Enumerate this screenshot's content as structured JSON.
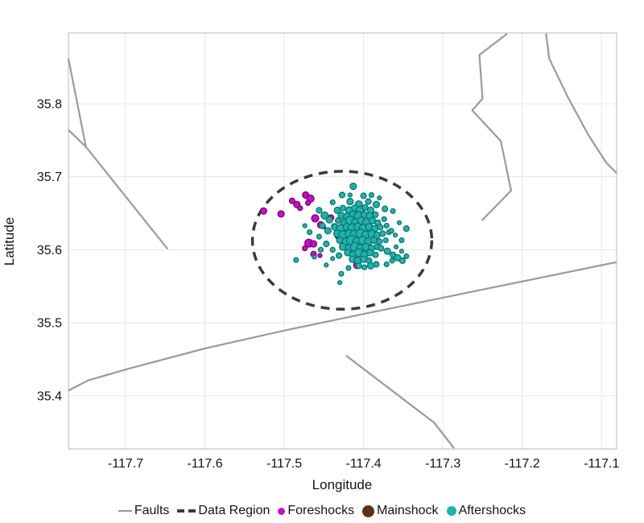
{
  "legend": {
    "items": [
      {
        "id": "faults",
        "label": "Faults",
        "marker": "line",
        "color": "#9a9a9a"
      },
      {
        "id": "data-region",
        "label": "Data Region",
        "marker": "dashes",
        "color": "#3a3a3a"
      },
      {
        "id": "foreshocks",
        "label": "Foreshocks",
        "marker": "dot",
        "color": "#c113c1"
      },
      {
        "id": "mainshock",
        "label": "Mainshock",
        "marker": "dot",
        "color": "#5e3210"
      },
      {
        "id": "aftershocks",
        "label": "Aftershocks",
        "marker": "dot",
        "color": "#1fb3ac"
      }
    ]
  },
  "chart_data": {
    "type": "scatter",
    "title": "",
    "xlabel": "Longitude",
    "ylabel": "Latitude",
    "xlim": [
      -117.772,
      -117.081
    ],
    "ylim": [
      35.327,
      35.897
    ],
    "grid": true,
    "legend_position": "bottom",
    "xticks": {
      "values": [
        -117.7,
        -117.6,
        -117.5,
        -117.4,
        -117.3,
        -117.2,
        -117.1
      ],
      "labels": [
        "-117.7",
        "-117.6",
        "-117.5",
        "-117.4",
        "-117.3",
        "-117.2",
        "-117.1"
      ]
    },
    "yticks": {
      "values": [
        35.4,
        35.5,
        35.6,
        35.7,
        35.8
      ],
      "labels": [
        "35.4",
        "35.5",
        "35.6",
        "35.7",
        "35.8"
      ]
    },
    "style": {
      "grid_color": "#e8e8e8",
      "frame_color": "#b8b8b8",
      "text_color": "#141414",
      "tick_font_size": 16,
      "label_font_size": 17
    },
    "faults": {
      "color": "#9a9a9a",
      "width": 2.2,
      "lines": [
        [
          [
            -117.772,
            35.862
          ],
          [
            -117.75,
            35.741
          ]
        ],
        [
          [
            -117.772,
            35.764
          ],
          [
            -117.75,
            35.741
          ],
          [
            -117.647,
            35.601
          ]
        ],
        [
          [
            -117.772,
            35.407
          ],
          [
            -117.747,
            35.421
          ],
          [
            -117.696,
            35.437
          ],
          [
            -117.599,
            35.465
          ],
          [
            -117.497,
            35.49
          ],
          [
            -117.4,
            35.512
          ],
          [
            -117.081,
            35.583
          ]
        ],
        [
          [
            -117.219,
            35.896
          ],
          [
            -117.254,
            35.867
          ],
          [
            -117.25,
            35.807
          ],
          [
            -117.263,
            35.791
          ],
          [
            -117.227,
            35.749
          ],
          [
            -117.214,
            35.681
          ],
          [
            -117.251,
            35.64
          ]
        ],
        [
          [
            -117.17,
            35.896
          ],
          [
            -117.166,
            35.862
          ],
          [
            -117.142,
            35.808
          ],
          [
            -117.117,
            35.758
          ],
          [
            -117.094,
            35.719
          ],
          [
            -117.081,
            35.705
          ]
        ],
        [
          [
            -117.422,
            35.455
          ],
          [
            -117.311,
            35.363
          ],
          [
            -117.286,
            35.328
          ]
        ]
      ]
    },
    "data_region": {
      "center": [
        -117.427,
        35.613
      ],
      "rx": 0.113,
      "ry": 0.0945,
      "color": "#3a3a3a",
      "stroke_width": 3.5,
      "dash": "11 8"
    },
    "series": [
      {
        "name": "Foreshocks",
        "fill": "#c113c1",
        "edge": "#73026f",
        "points": [
          [
            -117.526,
            35.653,
            8
          ],
          [
            -117.504,
            35.649,
            8
          ],
          [
            -117.49,
            35.667,
            7
          ],
          [
            -117.484,
            35.662,
            8
          ],
          [
            -117.48,
            35.657,
            6
          ],
          [
            -117.473,
            35.675,
            8
          ],
          [
            -117.467,
            35.67,
            9
          ],
          [
            -117.47,
            35.664,
            6
          ],
          [
            -117.461,
            35.643,
            9
          ],
          [
            -117.454,
            35.634,
            8
          ],
          [
            -117.441,
            35.644,
            7
          ],
          [
            -117.451,
            35.632,
            6
          ],
          [
            -117.469,
            35.609,
            10
          ],
          [
            -117.463,
            35.608,
            8
          ],
          [
            -117.474,
            35.602,
            6
          ],
          [
            -117.463,
            35.594,
            7
          ],
          [
            -117.455,
            35.592,
            5
          ],
          [
            -117.408,
            35.579,
            9
          ]
        ]
      },
      {
        "name": "Mainshock",
        "fill": "#5e3210",
        "edge": "#331607",
        "points": [
          [
            -117.43,
            35.621,
            13
          ]
        ]
      },
      {
        "name": "Aftershocks",
        "fill": "#1fb3ac",
        "edge": "#0c6f6a",
        "points": [
          [
            -117.427,
            35.675,
            7
          ],
          [
            -117.413,
            35.687,
            8
          ],
          [
            -117.4,
            35.674,
            7
          ],
          [
            -117.439,
            35.665,
            6
          ],
          [
            -117.417,
            35.666,
            8
          ],
          [
            -117.406,
            35.662,
            9
          ],
          [
            -117.394,
            35.666,
            7
          ],
          [
            -117.384,
            35.662,
            8
          ],
          [
            -117.373,
            35.656,
            7
          ],
          [
            -117.363,
            35.653,
            6
          ],
          [
            -117.39,
            35.675,
            6
          ],
          [
            -117.38,
            35.671,
            5
          ],
          [
            -117.456,
            35.654,
            7
          ],
          [
            -117.449,
            35.647,
            9
          ],
          [
            -117.443,
            35.641,
            8
          ],
          [
            -117.452,
            35.633,
            7
          ],
          [
            -117.445,
            35.626,
            8
          ],
          [
            -117.437,
            35.632,
            7
          ],
          [
            -117.456,
            35.618,
            6
          ],
          [
            -117.468,
            35.624,
            6
          ],
          [
            -117.474,
            35.633,
            5
          ],
          [
            -117.485,
            35.586,
            6
          ],
          [
            -117.462,
            35.59,
            5
          ],
          [
            -117.454,
            35.6,
            6
          ],
          [
            -117.447,
            35.608,
            7
          ],
          [
            -117.439,
            35.6,
            6
          ],
          [
            -117.431,
            35.592,
            7
          ],
          [
            -117.439,
            35.588,
            5
          ],
          [
            -117.447,
            35.579,
            5
          ],
          [
            -117.428,
            35.567,
            6
          ],
          [
            -117.419,
            35.575,
            6
          ],
          [
            -117.433,
            35.654,
            8
          ],
          [
            -117.426,
            35.657,
            7
          ],
          [
            -117.418,
            35.654,
            9
          ],
          [
            -117.411,
            35.657,
            8
          ],
          [
            -117.404,
            35.654,
            10
          ],
          [
            -117.398,
            35.658,
            7
          ],
          [
            -117.391,
            35.654,
            8
          ],
          [
            -117.428,
            35.647,
            8
          ],
          [
            -117.42,
            35.645,
            10
          ],
          [
            -117.413,
            35.648,
            9
          ],
          [
            -117.406,
            35.646,
            11
          ],
          [
            -117.399,
            35.648,
            8
          ],
          [
            -117.392,
            35.646,
            9
          ],
          [
            -117.385,
            35.648,
            7
          ],
          [
            -117.432,
            35.64,
            7
          ],
          [
            -117.424,
            35.637,
            9
          ],
          [
            -117.417,
            35.64,
            11
          ],
          [
            -117.41,
            35.637,
            10
          ],
          [
            -117.403,
            35.64,
            9
          ],
          [
            -117.396,
            35.637,
            10
          ],
          [
            -117.389,
            35.64,
            8
          ],
          [
            -117.382,
            35.637,
            7
          ],
          [
            -117.374,
            35.642,
            6
          ],
          [
            -117.436,
            35.631,
            8
          ],
          [
            -117.429,
            35.629,
            10
          ],
          [
            -117.421,
            35.631,
            9
          ],
          [
            -117.414,
            35.629,
            12
          ],
          [
            -117.407,
            35.631,
            10
          ],
          [
            -117.4,
            35.629,
            11
          ],
          [
            -117.393,
            35.631,
            9
          ],
          [
            -117.386,
            35.629,
            8
          ],
          [
            -117.379,
            35.631,
            7
          ],
          [
            -117.371,
            35.633,
            6
          ],
          [
            -117.433,
            35.622,
            9
          ],
          [
            -117.426,
            35.62,
            11
          ],
          [
            -117.418,
            35.622,
            10
          ],
          [
            -117.411,
            35.62,
            12
          ],
          [
            -117.404,
            35.622,
            11
          ],
          [
            -117.397,
            35.62,
            10
          ],
          [
            -117.39,
            35.622,
            9
          ],
          [
            -117.383,
            35.62,
            8
          ],
          [
            -117.376,
            35.622,
            7
          ],
          [
            -117.368,
            35.624,
            6
          ],
          [
            -117.43,
            35.613,
            8
          ],
          [
            -117.422,
            35.611,
            10
          ],
          [
            -117.415,
            35.613,
            12
          ],
          [
            -117.408,
            35.611,
            11
          ],
          [
            -117.401,
            35.613,
            10
          ],
          [
            -117.394,
            35.611,
            9
          ],
          [
            -117.387,
            35.613,
            8
          ],
          [
            -117.38,
            35.611,
            7
          ],
          [
            -117.372,
            35.613,
            6
          ],
          [
            -117.426,
            35.604,
            9
          ],
          [
            -117.418,
            35.602,
            10
          ],
          [
            -117.411,
            35.604,
            11
          ],
          [
            -117.404,
            35.602,
            10
          ],
          [
            -117.397,
            35.604,
            9
          ],
          [
            -117.39,
            35.602,
            8
          ],
          [
            -117.383,
            35.604,
            7
          ],
          [
            -117.42,
            35.596,
            8
          ],
          [
            -117.413,
            35.593,
            9
          ],
          [
            -117.406,
            35.596,
            10
          ],
          [
            -117.399,
            35.593,
            9
          ],
          [
            -117.392,
            35.596,
            8
          ],
          [
            -117.385,
            35.593,
            7
          ],
          [
            -117.414,
            35.587,
            8
          ],
          [
            -117.407,
            35.585,
            9
          ],
          [
            -117.4,
            35.587,
            8
          ],
          [
            -117.393,
            35.585,
            7
          ],
          [
            -117.406,
            35.578,
            7
          ],
          [
            -117.399,
            35.576,
            6
          ],
          [
            -117.378,
            35.602,
            7
          ],
          [
            -117.37,
            35.598,
            8
          ],
          [
            -117.363,
            35.593,
            7
          ],
          [
            -117.357,
            35.589,
            8
          ],
          [
            -117.351,
            35.585,
            7
          ],
          [
            -117.346,
            35.591,
            6
          ],
          [
            -117.352,
            35.598,
            5
          ],
          [
            -117.364,
            35.585,
            6
          ],
          [
            -117.371,
            35.58,
            6
          ],
          [
            -117.384,
            35.58,
            7
          ],
          [
            -117.391,
            35.578,
            8
          ],
          [
            -117.359,
            35.604,
            5
          ],
          [
            -117.352,
            35.613,
            6
          ],
          [
            -117.36,
            35.62,
            5
          ],
          [
            -117.365,
            35.626,
            6
          ],
          [
            -117.346,
            35.629,
            7
          ],
          [
            -117.355,
            35.637,
            5
          ],
          [
            -117.417,
            35.675,
            5
          ],
          [
            -117.43,
            35.555,
            5
          ]
        ]
      }
    ]
  }
}
